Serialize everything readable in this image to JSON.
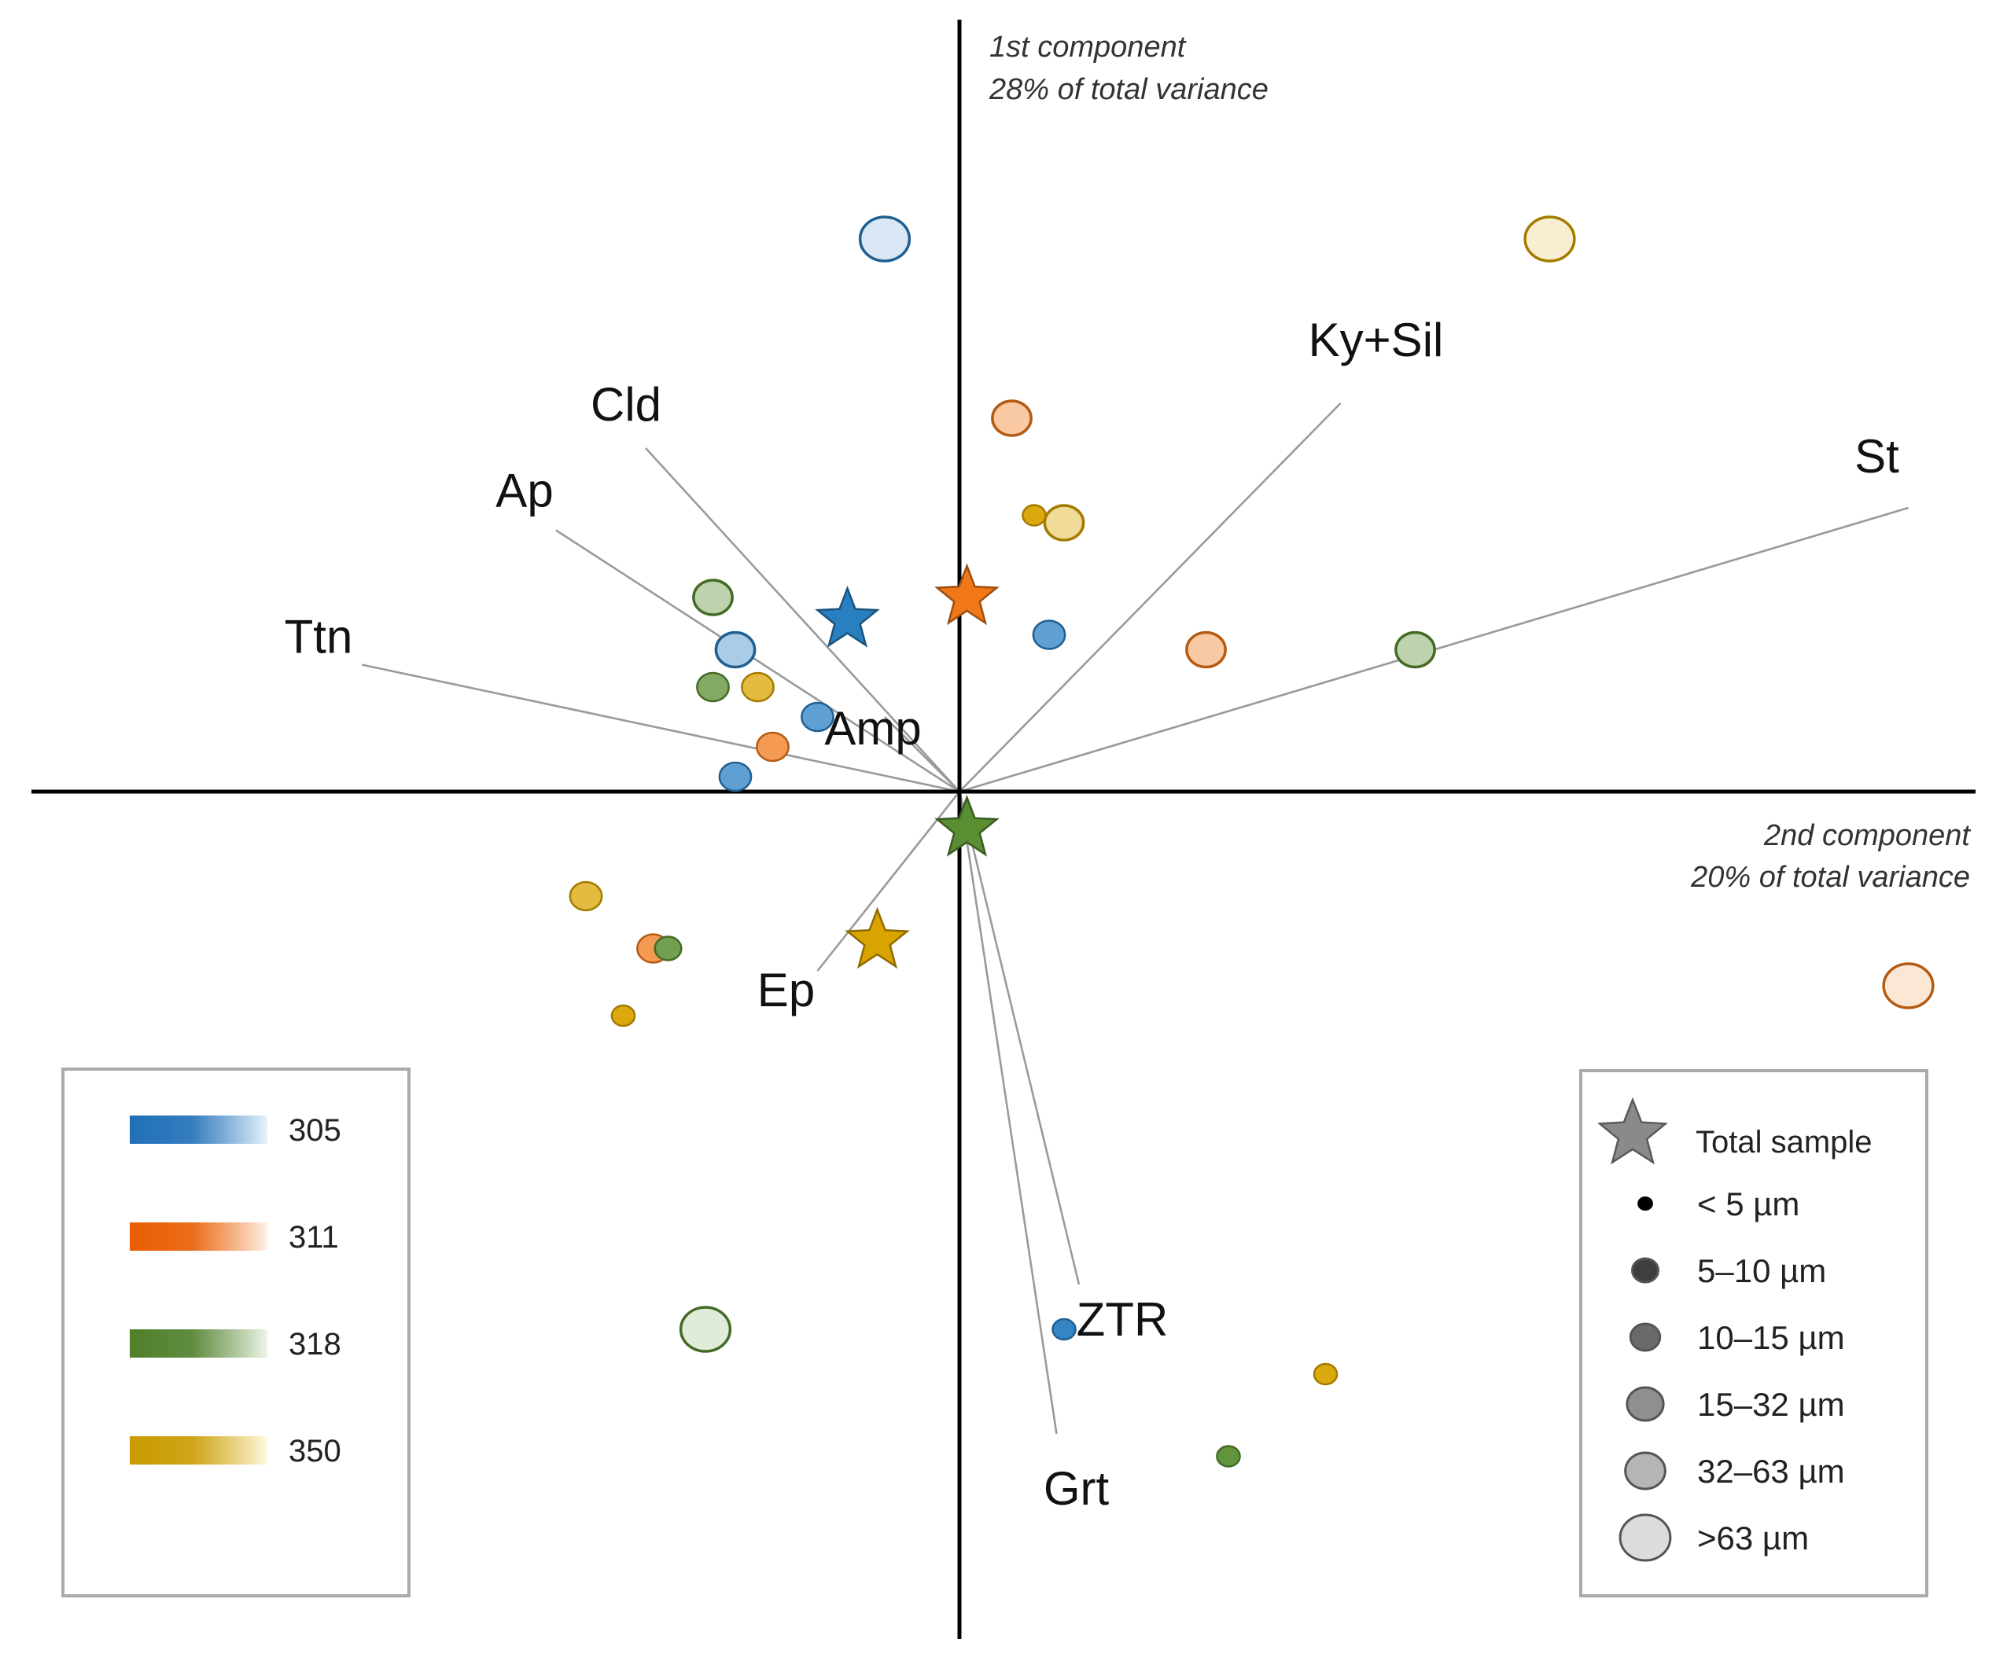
{
  "chart_data": {
    "type": "scatter",
    "title": "",
    "axes": {
      "vertical_caption": [
        "1st component",
        "28% of total variance"
      ],
      "horizontal_caption": [
        "2nd component",
        "20% of total variance"
      ],
      "xlim": [
        -1.2,
        1.3
      ],
      "ylim": [
        -1.1,
        1.0
      ],
      "grid": false
    },
    "loadings": [
      {
        "label": "Ttn",
        "x": -0.8,
        "y": 0.17
      },
      {
        "label": "Ap",
        "x": -0.54,
        "y": 0.35
      },
      {
        "label": "Cld",
        "x": -0.42,
        "y": 0.46
      },
      {
        "label": "Amp",
        "x": -0.1,
        "y": 0.1
      },
      {
        "label": "Ky+Sil",
        "x": 0.51,
        "y": 0.52
      },
      {
        "label": "St",
        "x": 1.27,
        "y": 0.38
      },
      {
        "label": "Ep",
        "x": -0.19,
        "y": -0.24
      },
      {
        "label": "ZTR",
        "x": 0.16,
        "y": -0.66
      },
      {
        "label": "Grt",
        "x": 0.13,
        "y": -0.86
      }
    ],
    "series": [
      {
        "name": "305",
        "color": "#2a7fc1",
        "points": [
          {
            "x": -0.1,
            "y": 0.74,
            "size": ">63 µm"
          },
          {
            "x": -0.3,
            "y": 0.19,
            "size": "32-63 µm"
          },
          {
            "x": -0.19,
            "y": 0.1,
            "size": "15-32 µm"
          },
          {
            "x": -0.3,
            "y": 0.02,
            "size": "15-32 µm"
          },
          {
            "x": 0.12,
            "y": 0.21,
            "size": "15-32 µm"
          },
          {
            "x": 0.14,
            "y": -0.72,
            "size": "5-10 µm"
          }
        ],
        "total_sample": {
          "x": -0.15,
          "y": 0.23
        }
      },
      {
        "name": "311",
        "color": "#f07818",
        "points": [
          {
            "x": 0.07,
            "y": 0.5,
            "size": "32-63 µm"
          },
          {
            "x": 0.33,
            "y": 0.19,
            "size": "32-63 µm"
          },
          {
            "x": 1.27,
            "y": -0.26,
            "size": ">63 µm"
          },
          {
            "x": -0.25,
            "y": 0.06,
            "size": "15-32 µm"
          },
          {
            "x": -0.41,
            "y": -0.21,
            "size": "15-32 µm"
          }
        ],
        "total_sample": {
          "x": 0.01,
          "y": 0.26
        }
      },
      {
        "name": "318",
        "color": "#5a8e32",
        "points": [
          {
            "x": -0.33,
            "y": 0.26,
            "size": "32-63 µm"
          },
          {
            "x": -0.33,
            "y": 0.14,
            "size": "15-32 µm"
          },
          {
            "x": 0.61,
            "y": 0.19,
            "size": "32-63 µm"
          },
          {
            "x": -0.34,
            "y": -0.72,
            "size": ">63 µm"
          },
          {
            "x": -0.39,
            "y": -0.21,
            "size": "10-15 µm"
          },
          {
            "x": 0.36,
            "y": -0.89,
            "size": "5-10 µm"
          }
        ],
        "total_sample": {
          "x": 0.01,
          "y": -0.05
        }
      },
      {
        "name": "350",
        "color": "#d9a400",
        "points": [
          {
            "x": 0.79,
            "y": 0.74,
            "size": ">63 µm"
          },
          {
            "x": 0.14,
            "y": 0.36,
            "size": "32-63 µm"
          },
          {
            "x": -0.27,
            "y": 0.14,
            "size": "15-32 µm"
          },
          {
            "x": -0.5,
            "y": -0.14,
            "size": "15-32 µm"
          },
          {
            "x": 0.1,
            "y": 0.37,
            "size": "5-10 µm"
          },
          {
            "x": -0.45,
            "y": -0.3,
            "size": "5-10 µm"
          },
          {
            "x": 0.49,
            "y": -0.78,
            "size": "5-10 µm"
          }
        ],
        "total_sample": {
          "x": -0.11,
          "y": -0.2
        }
      }
    ],
    "legend_series": [
      "305",
      "311",
      "318",
      "350"
    ],
    "legend_sizes": {
      "total_label": "Total sample",
      "classes": [
        "< 5 µm",
        "5–10 µm",
        "10–15 µm",
        "15–32 µm",
        "32–63 µm",
        ">63 µm"
      ]
    }
  },
  "colors": {
    "305": [
      "#1f6fb8",
      "#e8f2fb"
    ],
    "311": [
      "#e85d00",
      "#fff0e6"
    ],
    "318": [
      "#4f7f2a",
      "#eef5e8"
    ],
    "350": [
      "#c99a00",
      "#fff8dc"
    ]
  }
}
